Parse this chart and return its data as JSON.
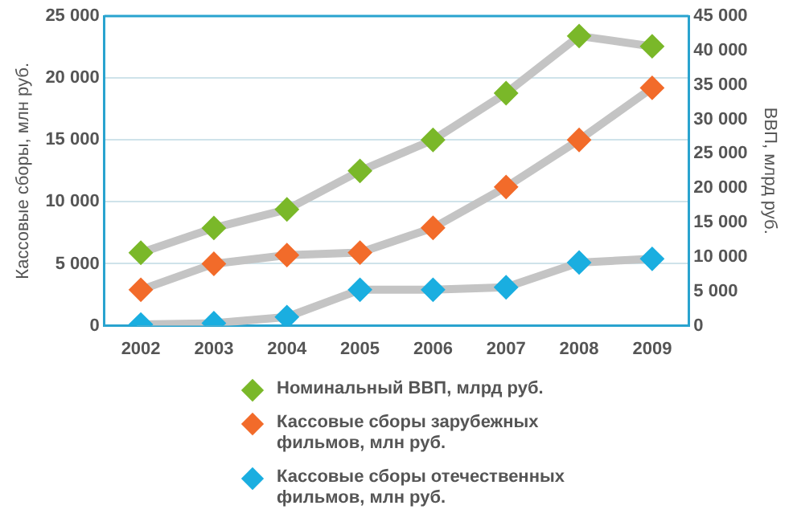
{
  "chart_data": {
    "type": "line",
    "ylabel": "Кассовые сборы, млн руб.",
    "y2label": "ВВП, млрд руб.",
    "categories": [
      "2002",
      "2003",
      "2004",
      "2005",
      "2006",
      "2007",
      "2008",
      "2009"
    ],
    "series": [
      {
        "name": "Номинальный ВВП, млрд руб.",
        "color": "#7ab829",
        "axis": "y2",
        "values": [
          10600,
          14200,
          16900,
          22500,
          27000,
          33800,
          42100,
          40600
        ]
      },
      {
        "name": "Кассовые сборы зарубежных фильмов, млн руб.",
        "color": "#f26b2a",
        "values": [
          2900,
          5000,
          5700,
          5900,
          7900,
          11200,
          15000,
          19200
        ]
      },
      {
        "name": "Кассовые сборы отечественных фильмов, млн руб.",
        "color": "#1aaee0",
        "values": [
          100,
          200,
          700,
          2900,
          2900,
          3100,
          5100,
          5400
        ]
      }
    ],
    "ylim": [
      0,
      25000
    ],
    "yticks": [
      {
        "value": 0,
        "label": "0"
      },
      {
        "value": 5000,
        "label": "5 000"
      },
      {
        "value": 10000,
        "label": "10 000"
      },
      {
        "value": 15000,
        "label": "15 000"
      },
      {
        "value": 20000,
        "label": "20 000"
      },
      {
        "value": 25000,
        "label": "25 000"
      }
    ],
    "y2lim": [
      0,
      45000
    ],
    "y2ticks": [
      {
        "value": 0,
        "label": "0"
      },
      {
        "value": 5000,
        "label": "5 000"
      },
      {
        "value": 10000,
        "label": "10 000"
      },
      {
        "value": 15000,
        "label": "15 000"
      },
      {
        "value": 20000,
        "label": "20 000"
      },
      {
        "value": 25000,
        "label": "25 000"
      },
      {
        "value": 30000,
        "label": "30 000"
      },
      {
        "value": 35000,
        "label": "35 000"
      },
      {
        "value": 40000,
        "label": "40 000"
      },
      {
        "value": 45000,
        "label": "45 000"
      }
    ],
    "grid": "y",
    "legend": "bottom",
    "marker": "diamond",
    "line_style": "solid"
  }
}
